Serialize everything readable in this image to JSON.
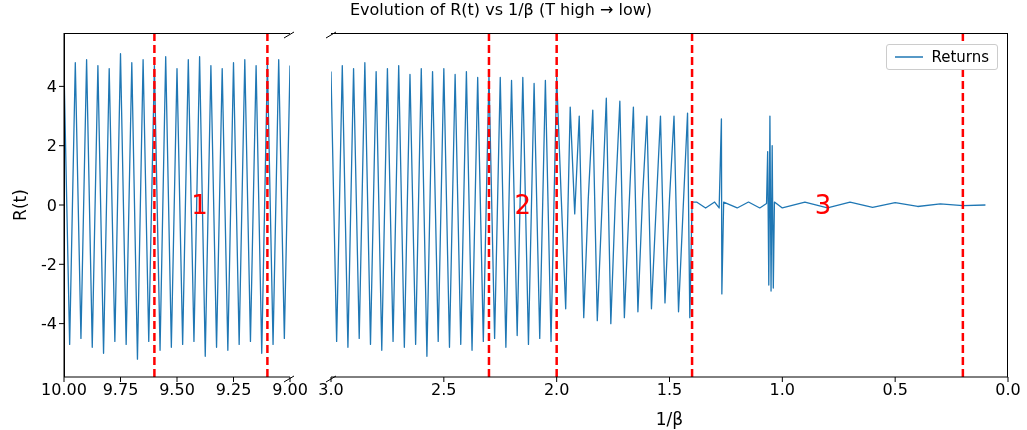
{
  "chart_data": [
    {
      "type": "line",
      "ylabel": "R(t)",
      "xlim": [
        10,
        9
      ],
      "xticks": [
        {
          "value": 10,
          "label": "10.00"
        },
        {
          "value": 9.75,
          "label": "9.75"
        },
        {
          "value": 9.5,
          "label": "9.50"
        },
        {
          "value": 9.25,
          "label": "9.25"
        },
        {
          "value": 9,
          "label": "9.00"
        }
      ],
      "ylim": [
        -5.8,
        5.8
      ],
      "yticks": [
        -4,
        -2,
        0,
        2,
        4
      ],
      "series": [
        {
          "color": "#1f77b4",
          "x": [
            10.0,
            9.975,
            9.95,
            9.925,
            9.9,
            9.875,
            9.85,
            9.825,
            9.8,
            9.775,
            9.75,
            9.725,
            9.7,
            9.675,
            9.65,
            9.625,
            9.6,
            9.575,
            9.55,
            9.525,
            9.5,
            9.475,
            9.45,
            9.425,
            9.4,
            9.375,
            9.35,
            9.325,
            9.3,
            9.275,
            9.25,
            9.225,
            9.2,
            9.175,
            9.15,
            9.125,
            9.1,
            9.075,
            9.05,
            9.025,
            9.0
          ],
          "values": [
            4.6,
            -4.7,
            4.8,
            -4.5,
            4.9,
            -4.8,
            4.7,
            -5.0,
            4.6,
            -4.6,
            5.1,
            -4.7,
            4.8,
            -5.2,
            4.9,
            -4.6,
            4.7,
            -4.9,
            5.0,
            -4.8,
            4.6,
            -4.7,
            4.9,
            -4.6,
            5.0,
            -5.1,
            4.7,
            -4.8,
            4.6,
            -4.9,
            4.8,
            -4.7,
            4.9,
            -4.6,
            4.7,
            -5.0,
            4.8,
            -4.7,
            4.9,
            -4.5,
            4.7
          ]
        }
      ],
      "ref_lines": [
        {
          "axis": "x",
          "value": 9.6,
          "color": "#ff0000",
          "line_style": "dashed"
        },
        {
          "axis": "x",
          "value": 9.1,
          "color": "#ff0000",
          "line_style": "dashed"
        }
      ],
      "annotations": [
        {
          "text": "1",
          "x": 9.4,
          "y": 0
        }
      ]
    },
    {
      "type": "line",
      "title": "Evolution of R(t) vs 1/β (T high → low)",
      "xlabel": "1/β",
      "legend": "top right",
      "tick_labels": "x",
      "xlim": [
        3,
        0
      ],
      "xticks": [
        {
          "value": 3,
          "label": "3.0"
        },
        {
          "value": 2.5,
          "label": "2.5"
        },
        {
          "value": 2,
          "label": "2.0"
        },
        {
          "value": 1.5,
          "label": "1.5"
        },
        {
          "value": 1,
          "label": "1.0"
        },
        {
          "value": 0.5,
          "label": "0.5"
        },
        {
          "value": 0,
          "label": "0.0"
        }
      ],
      "ylim": [
        -5.8,
        5.8
      ],
      "series": [
        {
          "name": "Returns",
          "color": "#1f77b4",
          "x": [
            3.0,
            2.975,
            2.95,
            2.925,
            2.9,
            2.875,
            2.85,
            2.825,
            2.8,
            2.775,
            2.75,
            2.725,
            2.7,
            2.675,
            2.65,
            2.625,
            2.6,
            2.575,
            2.55,
            2.525,
            2.5,
            2.475,
            2.45,
            2.425,
            2.4,
            2.375,
            2.35,
            2.325,
            2.3,
            2.275,
            2.25,
            2.225,
            2.2,
            2.175,
            2.15,
            2.125,
            2.1,
            2.075,
            2.05,
            2.025,
            2.0,
            1.98,
            1.96,
            1.94,
            1.92,
            1.9,
            1.88,
            1.86,
            1.84,
            1.82,
            1.8,
            1.78,
            1.76,
            1.74,
            1.72,
            1.7,
            1.68,
            1.66,
            1.64,
            1.62,
            1.6,
            1.58,
            1.56,
            1.54,
            1.52,
            1.5,
            1.48,
            1.46,
            1.44,
            1.42,
            1.41,
            1.4,
            1.38,
            1.34,
            1.3,
            1.28,
            1.27,
            1.268,
            1.26,
            1.2,
            1.15,
            1.1,
            1.07,
            1.065,
            1.06,
            1.055,
            1.05,
            1.045,
            1.04,
            1.035,
            1.0,
            0.9,
            0.8,
            0.7,
            0.6,
            0.5,
            0.4,
            0.3,
            0.2,
            0.1
          ],
          "values": [
            4.5,
            -4.6,
            4.7,
            -4.8,
            4.6,
            -4.5,
            4.8,
            -4.7,
            4.5,
            -4.9,
            4.6,
            -4.6,
            4.7,
            -4.8,
            4.4,
            -4.7,
            4.6,
            -5.1,
            4.5,
            -4.6,
            4.6,
            -4.8,
            4.4,
            -4.7,
            4.5,
            -4.9,
            4.3,
            -4.6,
            4.4,
            -4.5,
            4.3,
            -4.8,
            4.2,
            -4.4,
            4.3,
            -4.7,
            4.1,
            -4.5,
            4.2,
            -4.6,
            4.3,
            0.3,
            -3.5,
            3.3,
            -0.3,
            3.0,
            -3.8,
            0.2,
            3.2,
            -3.9,
            -0.2,
            3.6,
            -4.0,
            0.2,
            3.5,
            -3.8,
            -0.2,
            3.3,
            -3.6,
            0.2,
            3.0,
            -3.5,
            -0.2,
            3.0,
            -3.3,
            0.2,
            3.0,
            -3.6,
            -0.2,
            3.1,
            -3.8,
            0.1,
            0.1,
            -0.1,
            0.1,
            -0.1,
            2.9,
            -3.0,
            0.1,
            -0.1,
            0.1,
            -0.1,
            0.05,
            1.8,
            -2.7,
            3.0,
            -2.9,
            2.0,
            -2.8,
            0.1,
            -0.1,
            0.1,
            -0.1,
            0.1,
            -0.08,
            0.08,
            -0.05,
            0.04,
            -0.02,
            0
          ]
        }
      ],
      "ref_lines": [
        {
          "axis": "x",
          "value": 2.3,
          "color": "#ff0000",
          "line_style": "dashed"
        },
        {
          "axis": "x",
          "value": 2.0,
          "color": "#ff0000",
          "line_style": "dashed"
        },
        {
          "axis": "x",
          "value": 1.4,
          "color": "#ff0000",
          "line_style": "dashed"
        },
        {
          "axis": "x",
          "value": 0.2,
          "color": "#ff0000",
          "line_style": "dashed"
        }
      ],
      "annotations": [
        {
          "text": "2",
          "x": 2.15,
          "y": 0
        },
        {
          "text": "3",
          "x": 0.82,
          "y": 0
        }
      ]
    }
  ]
}
